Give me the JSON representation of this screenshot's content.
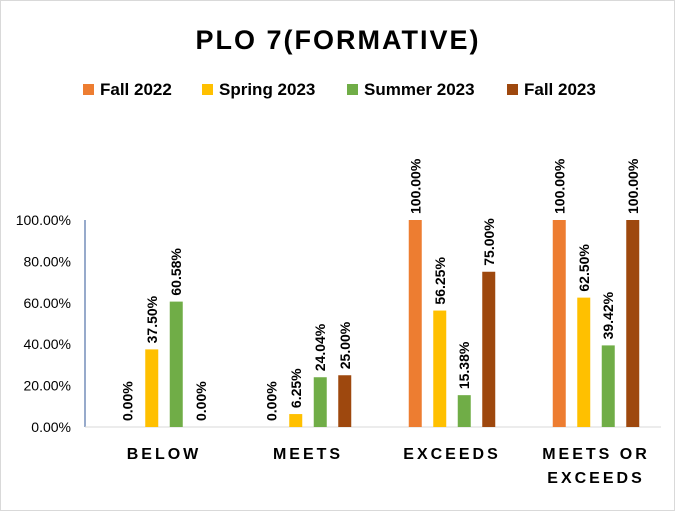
{
  "chart_data": {
    "type": "bar",
    "title": "PLO 7(FORMATIVE)",
    "categories": [
      [
        "BELOW"
      ],
      [
        "MEETS"
      ],
      [
        "EXCEEDS"
      ],
      [
        "MEETS OR",
        "EXCEEDS"
      ]
    ],
    "series": [
      {
        "name": "Fall 2022",
        "color": "#ED7D31",
        "values": [
          0,
          0,
          100,
          100
        ],
        "labels": [
          "0.00%",
          "0.00%",
          "100.00%",
          "100.00%"
        ]
      },
      {
        "name": "Spring 2023",
        "color": "#FFC000",
        "values": [
          37.5,
          6.25,
          56.25,
          62.5
        ],
        "labels": [
          "37.50%",
          "6.25%",
          "56.25%",
          "62.50%"
        ]
      },
      {
        "name": "Summer 2023",
        "color": "#70AD47",
        "values": [
          60.58,
          24.04,
          15.38,
          39.42
        ],
        "labels": [
          "60.58%",
          "24.04%",
          "15.38%",
          "39.42%"
        ]
      },
      {
        "name": "Fall 2023",
        "color": "#9E480E",
        "values": [
          0,
          25,
          75,
          100
        ],
        "labels": [
          "0.00%",
          "25.00%",
          "75.00%",
          "100.00%"
        ]
      }
    ],
    "yticks": [
      "0.00%",
      "20.00%",
      "40.00%",
      "60.00%",
      "80.00%",
      "100.00%"
    ],
    "ylim": [
      0,
      100
    ],
    "legend_position": "top",
    "grid": false
  }
}
